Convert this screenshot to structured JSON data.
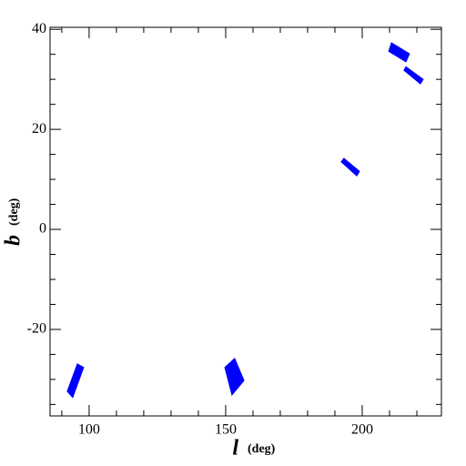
{
  "chart_data": {
    "type": "polygon",
    "xlabel": "l",
    "xlabel_unit": "(deg)",
    "ylabel": "b",
    "ylabel_unit": "(deg)",
    "xlim": [
      85.7,
      229
    ],
    "ylim": [
      -37.3,
      40.4
    ],
    "xticks": [
      100,
      150,
      200
    ],
    "yticks": [
      -20,
      0,
      20,
      40
    ],
    "xminorticks": [
      90,
      110,
      120,
      130,
      140,
      160,
      170,
      180,
      190,
      210,
      220
    ],
    "yminorticks": [
      -35,
      -30,
      -25,
      -15,
      -10,
      -5,
      5,
      10,
      15,
      25,
      30,
      35
    ],
    "color": "#0000ff",
    "series": [
      {
        "x": [
          92.0,
          94.0,
          98.0,
          95.7
        ],
        "y": [
          -32.4,
          -33.6,
          -27.6,
          -26.9
        ]
      },
      {
        "x": [
          149.7,
          152.3,
          156.7,
          153.3
        ],
        "y": [
          -27.6,
          -33.1,
          -30.2,
          -25.8
        ]
      },
      {
        "x": [
          192.3,
          193.3,
          199.0,
          198.0
        ],
        "y": [
          13.5,
          14.2,
          11.6,
          10.7
        ]
      },
      {
        "x": [
          209.7,
          210.7,
          217.3,
          216.0
        ],
        "y": [
          35.6,
          37.3,
          35.1,
          33.5
        ]
      },
      {
        "x": [
          215.3,
          216.0,
          222.3,
          221.3
        ],
        "y": [
          31.8,
          32.5,
          30.0,
          29.1
        ]
      }
    ]
  }
}
